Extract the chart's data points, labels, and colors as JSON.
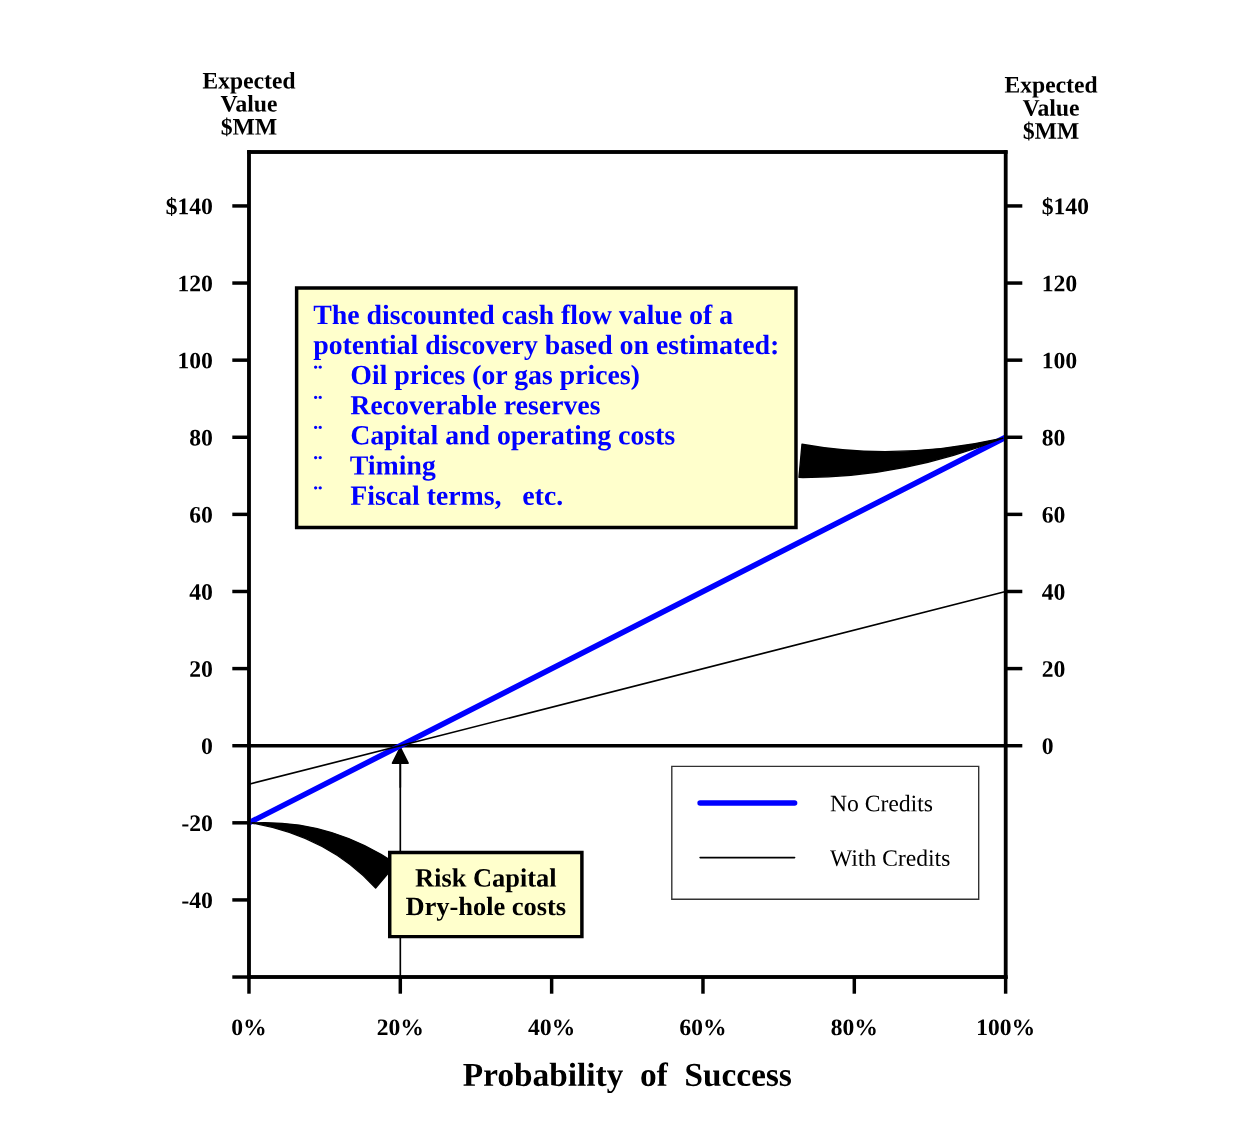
{
  "chart_data": {
    "type": "line",
    "xlabel": "Probability  of  Success",
    "ylabel": "Expected\nValue\n$MM",
    "y2label": "Expected\nValue\n$MM",
    "x": [
      0,
      100
    ],
    "series": [
      {
        "name": "No Credits",
        "color": "#0000ff",
        "values": [
          -20,
          80
        ]
      },
      {
        "name": "With Credits",
        "color": "#000000",
        "values": [
          -10,
          40
        ]
      }
    ],
    "xlim": [
      0,
      100
    ],
    "xticks": [
      {
        "value": 0,
        "label": "0%"
      },
      {
        "value": 20,
        "label": "20%"
      },
      {
        "value": 40,
        "label": "40%"
      },
      {
        "value": 60,
        "label": "60%"
      },
      {
        "value": 80,
        "label": "80%"
      },
      {
        "value": 100,
        "label": "100%"
      }
    ],
    "ylim": [
      -60,
      154
    ],
    "yticks": [
      {
        "value": -60,
        "label": null
      },
      -40,
      -20,
      0,
      20,
      40,
      60,
      80,
      100,
      120,
      {
        "value": 140,
        "label": "$140"
      }
    ],
    "y2lim": [
      -60,
      154
    ],
    "y2ticks": [
      0,
      20,
      40,
      60,
      80,
      100,
      120,
      {
        "value": 140,
        "label": "$140"
      }
    ],
    "ref_lines": [
      {
        "axis": "y",
        "value": 0,
        "color": "#000000"
      },
      {
        "axis": "x",
        "value": 20,
        "color": "#000000"
      }
    ],
    "annotations": [
      {
        "text": "The discounted cash flow value of a\npotential discovery based on estimated:\n¨    Oil prices (or gas prices)\n¨    Recoverable reserves\n¨    Capital and operating costs\n¨    Timing\n¨    Fiscal terms,   etc.",
        "x": 100,
        "y": 80
      },
      {
        "text": "Risk Capital\nDry-hole costs",
        "x": 0,
        "y": -20
      }
    ],
    "legend": "bottom right",
    "grid": false,
    "marker": "none",
    "line_style": "solid"
  }
}
